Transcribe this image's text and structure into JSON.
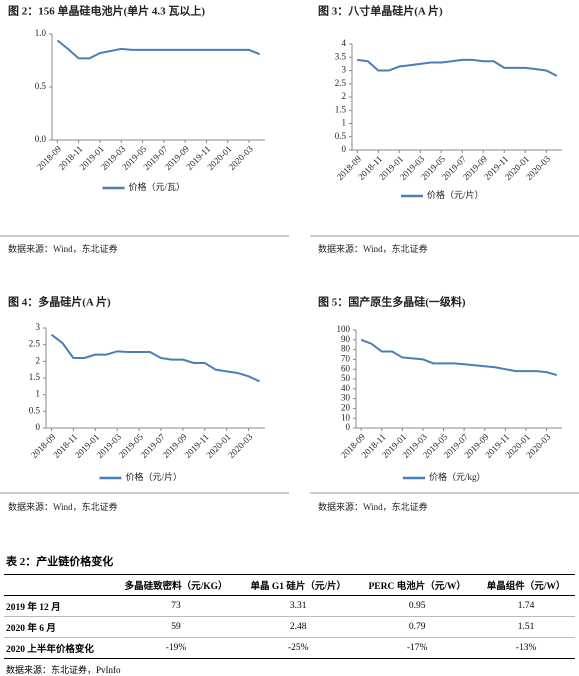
{
  "chart_data": [
    {
      "type": "line",
      "title": "图 2：156 单晶硅电池片(单片 4.3 瓦以上)",
      "categories": [
        "2018-09",
        null,
        "2018-11",
        null,
        "2019-01",
        null,
        "2019-03",
        null,
        "2019-05",
        null,
        "2019-07",
        null,
        "2019-09",
        null,
        "2019-11",
        null,
        "2020-01",
        null,
        "2020-03",
        null
      ],
      "series": [
        {
          "name": "价格（元/瓦）",
          "color": "#4a7ebb",
          "values": [
            0.94,
            0.86,
            0.77,
            0.77,
            0.82,
            0.84,
            0.86,
            0.85,
            0.85,
            0.85,
            0.85,
            0.85,
            0.85,
            0.85,
            0.85,
            0.85,
            0.85,
            0.85,
            0.85,
            0.81
          ]
        }
      ],
      "ylim": [
        0,
        1
      ],
      "yticks": [
        {
          "value": 0,
          "label": "0.0"
        },
        {
          "value": 0.5,
          "label": "0.5"
        },
        {
          "value": 1,
          "label": "1.0"
        }
      ],
      "source": "数据来源：Wind，东北证券"
    },
    {
      "type": "line",
      "title": "图 3：八寸单晶硅片(A 片)",
      "categories": [
        "2018-09",
        null,
        "2018-11",
        null,
        "2019-01",
        null,
        "2019-03",
        null,
        "2019-05",
        null,
        "2019-07",
        null,
        "2019-09",
        null,
        "2019-11",
        null,
        "2020-01",
        null,
        "2020-03",
        null
      ],
      "series": [
        {
          "name": "价格（元/片）",
          "color": "#4a7ebb",
          "values": [
            3.4,
            3.35,
            3.0,
            3.0,
            3.15,
            3.2,
            3.25,
            3.3,
            3.3,
            3.35,
            3.4,
            3.4,
            3.35,
            3.35,
            3.1,
            3.1,
            3.1,
            3.05,
            3.0,
            2.8
          ]
        }
      ],
      "ylim": [
        0,
        4
      ],
      "yticks": [
        0,
        0.5,
        1,
        1.5,
        2,
        2.5,
        3,
        3.5,
        4
      ],
      "source": "数据来源：Wind，东北证券"
    },
    {
      "type": "line",
      "title": "图 4：多晶硅片(A 片)",
      "categories": [
        "2018-09",
        null,
        "2018-11",
        null,
        "2019-01",
        null,
        "2019-03",
        null,
        "2019-05",
        null,
        "2019-07",
        null,
        "2019-09",
        null,
        "2019-11",
        null,
        "2020-01",
        null,
        "2020-03",
        null
      ],
      "series": [
        {
          "name": "价格（元/片）",
          "color": "#4a7ebb",
          "values": [
            2.8,
            2.55,
            2.1,
            2.1,
            2.2,
            2.2,
            2.3,
            2.28,
            2.28,
            2.28,
            2.1,
            2.05,
            2.05,
            1.95,
            1.95,
            1.75,
            1.7,
            1.65,
            1.55,
            1.4
          ]
        }
      ],
      "ylim": [
        0,
        3
      ],
      "yticks": [
        0,
        0.5,
        1,
        1.5,
        2,
        2.5,
        3
      ],
      "source": "数据来源：Wind，东北证券"
    },
    {
      "type": "line",
      "title": "图 5：国产原生多晶硅(一级料)",
      "categories": [
        "2018-09",
        null,
        "2018-11",
        null,
        "2019-01",
        null,
        "2019-03",
        null,
        "2019-05",
        null,
        "2019-07",
        null,
        "2019-09",
        null,
        "2019-11",
        null,
        "2020-01",
        null,
        "2020-03",
        null
      ],
      "series": [
        {
          "name": "价格（元/kg）",
          "color": "#4a7ebb",
          "values": [
            90,
            86,
            78,
            78,
            72,
            71,
            70,
            66,
            66,
            66,
            65,
            64,
            63,
            62,
            60,
            58,
            58,
            58,
            57,
            54
          ]
        }
      ],
      "ylim": [
        0,
        100
      ],
      "yticks": [
        0,
        10,
        20,
        30,
        40,
        50,
        60,
        70,
        80,
        90,
        100
      ],
      "source": "数据来源：Wind，东北证券"
    }
  ],
  "table": {
    "title": "表 2：产业链价格变化",
    "header": [
      "多晶硅致密料（元/KG）",
      "单晶 G1 硅片（元/片）",
      "PERC 电池片（元/W）",
      "单晶组件（元/W）"
    ],
    "rows": [
      [
        "2019 年 12 月",
        "73",
        "3.31",
        "0.95",
        "1.74"
      ],
      [
        "2020 年 6 月",
        "59",
        "2.48",
        "0.79",
        "1.51"
      ],
      [
        "2020 上半年价格变化",
        "-19%",
        "-25%",
        "-17%",
        "-13%"
      ]
    ],
    "source": "数据来源：东北证券，PvInfo"
  }
}
